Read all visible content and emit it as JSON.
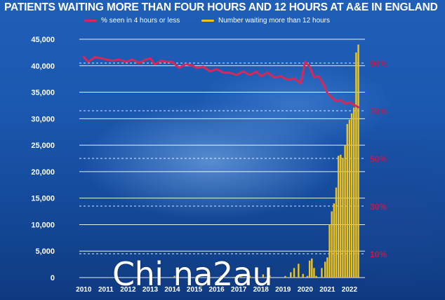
{
  "title": "PATIENTS WAITING MORE THAN FOUR HOURS AND 12 HOURS AT A&E IN ENGLAND",
  "watermark": "Chi na2au",
  "colors": {
    "pct_line": "#d6285a",
    "bars": "#f0c419",
    "left_axis_text": "#ffffff",
    "right_axis_text": "#c6174e",
    "grid": "#ffffff"
  },
  "chart_data": {
    "type": "bar",
    "title": "PATIENTS WAITING MORE THAN FOUR HOURS AND 12 HOURS AT A&E IN ENGLAND",
    "xlabel": "",
    "ylabel": "",
    "ylim": [
      0,
      45000
    ],
    "y2lim": [
      0,
      100
    ],
    "y_ticks": [
      0,
      5000,
      10000,
      15000,
      20000,
      25000,
      30000,
      35000,
      40000,
      45000
    ],
    "y_tick_labels": [
      "0",
      "5,000",
      "10,000",
      "15,000",
      "20,000",
      "25,000",
      "30,000",
      "35,000",
      "40,000",
      "45,000"
    ],
    "y2_ticks": [
      10,
      30,
      50,
      70,
      90
    ],
    "y2_tick_labels": [
      "10%",
      "30%",
      "50%",
      "70%",
      "90%"
    ],
    "x_tick_labels": [
      "2010",
      "2011",
      "2012",
      "2013",
      "2014",
      "2015",
      "2016",
      "2017",
      "2018",
      "2019",
      "2020",
      "2021",
      "2022"
    ],
    "grid": true,
    "legend": "top",
    "series": [
      {
        "name": "% seen in 4 hours or less",
        "type": "line",
        "axis": "right",
        "x": [
          2010.0,
          2010.2,
          2010.5,
          2010.8,
          2011.0,
          2011.3,
          2011.6,
          2011.9,
          2012.2,
          2012.5,
          2012.8,
          2013.0,
          2013.2,
          2013.5,
          2013.8,
          2014.0,
          2014.3,
          2014.6,
          2014.9,
          2015.1,
          2015.4,
          2015.7,
          2016.0,
          2016.3,
          2016.6,
          2016.9,
          2017.2,
          2017.5,
          2017.8,
          2018.0,
          2018.3,
          2018.6,
          2018.9,
          2019.2,
          2019.5,
          2019.8,
          2020.0,
          2020.2,
          2020.4,
          2020.6,
          2020.8,
          2021.0,
          2021.2,
          2021.4,
          2021.6,
          2021.8,
          2022.0,
          2022.2,
          2022.4
        ],
        "values": [
          92.5,
          90.5,
          92.5,
          92.0,
          91.5,
          91.0,
          91.5,
          90.5,
          91.5,
          90.0,
          91.5,
          92.0,
          89.5,
          91.0,
          90.5,
          90.5,
          88.0,
          89.5,
          89.0,
          88.0,
          88.5,
          86.5,
          87.5,
          86.0,
          86.0,
          85.0,
          86.5,
          85.0,
          86.5,
          84.5,
          86.0,
          84.0,
          84.5,
          83.0,
          83.5,
          81.5,
          90.5,
          88.5,
          84.0,
          84.5,
          81.5,
          77.5,
          75.5,
          74.0,
          74.5,
          73.0,
          73.5,
          72.5,
          71.5
        ]
      },
      {
        "name": "Number waiting more than 12 hours",
        "type": "bar",
        "axis": "left",
        "x": [
          2011.2,
          2014.1,
          2015.1,
          2016.2,
          2016.8,
          2017.1,
          2017.5,
          2018.1,
          2018.4,
          2019.1,
          2019.35,
          2019.5,
          2019.7,
          2019.9,
          2020.1,
          2020.2,
          2020.3,
          2020.4,
          2020.5,
          2020.75,
          2020.9,
          2021.0,
          2021.1,
          2021.2,
          2021.3,
          2021.4,
          2021.5,
          2021.6,
          2021.7,
          2021.8,
          2021.9,
          2022.0,
          2022.1,
          2022.2,
          2022.3,
          2022.4,
          2022.5
        ],
        "values": [
          50,
          300,
          250,
          350,
          150,
          400,
          350,
          600,
          400,
          300,
          1000,
          1800,
          2600,
          700,
          300,
          3200,
          3600,
          1800,
          300,
          1800,
          3000,
          3800,
          10000,
          12500,
          14000,
          17000,
          23000,
          23200,
          22600,
          25000,
          29000,
          29800,
          31000,
          32100,
          42500,
          44000,
          0
        ]
      }
    ]
  },
  "chart_meta": {
    "x_min": 2009.8,
    "x_max": 2022.7
  }
}
